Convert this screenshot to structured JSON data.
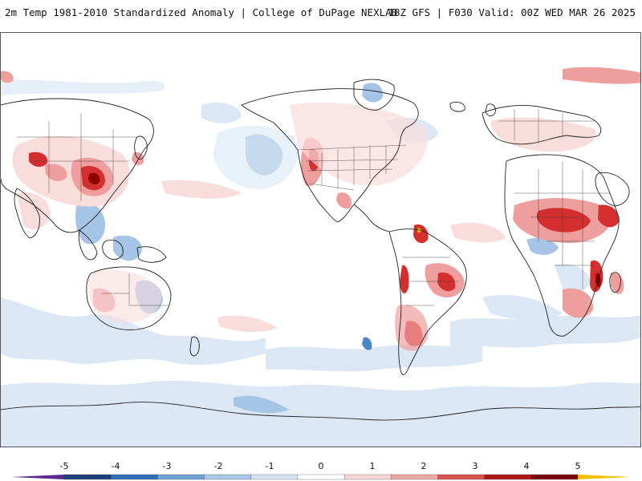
{
  "header": {
    "title_left": "2m Temp 1981-2010 Standardized Anomaly | College of DuPage NEXLAB",
    "title_right": "18Z GFS | F030 Valid: 00Z WED MAR 26 2025"
  },
  "colorbar": {
    "ticks": [
      "-5",
      "-4",
      "-3",
      "-2",
      "-1",
      "0",
      "1",
      "2",
      "3",
      "4",
      "5"
    ],
    "colors": [
      "#5a2d8c",
      "#1f3f7a",
      "#2f6fb8",
      "#6fa3d8",
      "#a9c8e8",
      "#d6e4f2",
      "#ffffff",
      "#f7d6d6",
      "#eca7a7",
      "#d9534f",
      "#b01818",
      "#7a0010",
      "#f2c200"
    ]
  },
  "map": {
    "colors": {
      "warm_light": "#f9dcdc",
      "warm_mid": "#ef9e9e",
      "warm_strong": "#d32f2f",
      "warm_extreme": "#8b0000",
      "cool_light": "#dbe7f4",
      "cool_mid": "#a6c4e6",
      "cool_strong": "#4a86c8",
      "coast": "#222222"
    }
  }
}
